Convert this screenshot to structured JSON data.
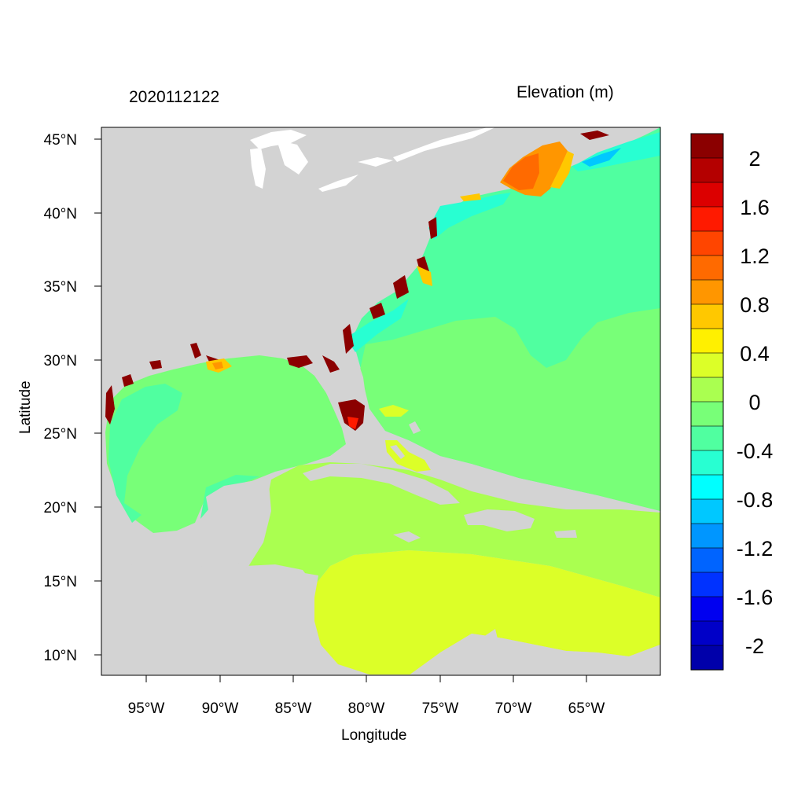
{
  "header": {
    "timestamp": "2020112122",
    "variable": "Elevation (m)"
  },
  "axes": {
    "xlabel": "Longitude",
    "ylabel": "Latitude",
    "x_ticks": [
      "95°W",
      "90°W",
      "85°W",
      "80°W",
      "75°W",
      "70°W",
      "65°W"
    ],
    "y_ticks": [
      "45°N",
      "40°N",
      "35°N",
      "30°N",
      "25°N",
      "20°N",
      "15°N",
      "10°N"
    ]
  },
  "colorbar": {
    "labels": [
      "2",
      "1.6",
      "1.2",
      "0.8",
      "0.4",
      "0",
      "-0.4",
      "-0.8",
      "-1.2",
      "-1.6",
      "-2"
    ],
    "colors": [
      "#8b0000",
      "#b40000",
      "#dc0000",
      "#ff1a00",
      "#ff4500",
      "#ff6a00",
      "#ff9600",
      "#ffc800",
      "#fff000",
      "#dcff28",
      "#aaff50",
      "#78ff78",
      "#50ffa0",
      "#28ffd2",
      "#00ffff",
      "#00c8ff",
      "#0096ff",
      "#0064ff",
      "#0032ff",
      "#0000f0",
      "#0000c8",
      "#0000aa"
    ]
  },
  "colors": {
    "land": "#d3d3d3",
    "lakes": "#ffffff",
    "ocean_atlantic": "#50ffa0",
    "ocean_gulf": "#78ff78",
    "caribbean_north": "#aaff50",
    "caribbean_south": "#dcff28",
    "surge_high": "#8b0000"
  }
}
